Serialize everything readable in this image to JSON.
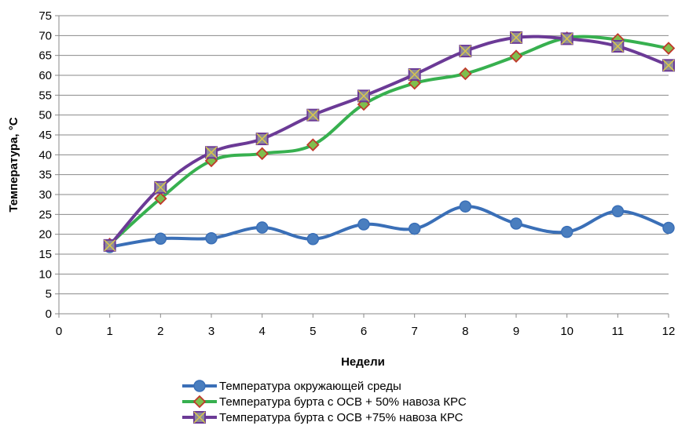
{
  "chart_data": {
    "type": "line",
    "title": "",
    "xlabel": "Недели",
    "ylabel": "Температура, °С",
    "xlim": [
      0,
      12
    ],
    "ylim": [
      0,
      75
    ],
    "x_ticks": [
      0,
      1,
      2,
      3,
      4,
      5,
      6,
      7,
      8,
      9,
      10,
      11,
      12
    ],
    "y_ticks": [
      0,
      5,
      10,
      15,
      20,
      25,
      30,
      35,
      40,
      45,
      50,
      55,
      60,
      65,
      70,
      75
    ],
    "grid": "horizontal",
    "smooth": true,
    "legend_position": "bottom",
    "x": [
      1,
      2,
      3,
      4,
      5,
      6,
      7,
      8,
      9,
      10,
      11,
      12
    ],
    "series": [
      {
        "name": "Температура окружающей среды",
        "color": "#3a6fb7",
        "marker": "circle",
        "marker_fill": "#4a7ebf",
        "marker_stroke": "#3a6fb7",
        "values": [
          16.8,
          18.9,
          19.0,
          21.7,
          18.8,
          22.5,
          21.4,
          27.0,
          22.7,
          20.6,
          25.8,
          21.6
        ]
      },
      {
        "name": "Температура бурта с ОСВ + 50% навоза КРС",
        "color": "#37b04f",
        "marker": "diamond",
        "marker_fill": "#7fbf4d",
        "marker_stroke": "#c0392b",
        "values": [
          17.5,
          29.0,
          38.5,
          40.3,
          42.5,
          52.7,
          58.0,
          60.4,
          64.8,
          69.4,
          69.0,
          66.8
        ]
      },
      {
        "name": "Температура бурта с ОСВ +75% навоза КРС",
        "color": "#6b3a96",
        "marker": "square-x",
        "marker_fill": "#8e8a9b",
        "marker_stroke": "#6b3a96",
        "values": [
          17.2,
          31.8,
          40.6,
          44.0,
          50.0,
          54.8,
          60.2,
          66.1,
          69.5,
          69.2,
          67.3,
          62.5
        ]
      }
    ]
  }
}
